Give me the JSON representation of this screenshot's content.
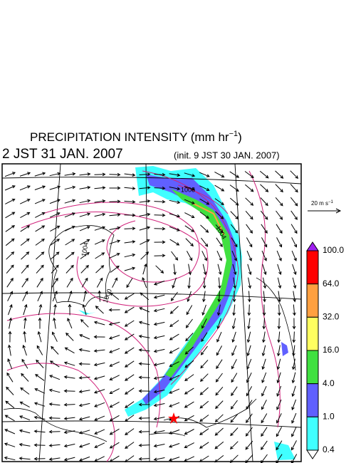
{
  "header": {
    "title": "PRECIPITATION INTENSITY (mm hr",
    "title_sup": "−1",
    "title_end": ")",
    "time": "2 JST 31 JAN. 2007",
    "init": "(init. 9 JST 30 JAN. 2007)"
  },
  "vector_key": {
    "label": "20 m s",
    "sup": "−1"
  },
  "contour_labels": [
    "1008",
    "1004",
    "1004",
    "1000"
  ],
  "colorbar": {
    "labels": [
      "100.0",
      "64.0",
      "32.0",
      "16.0",
      "4.0",
      "1.0",
      "0.4"
    ],
    "colors": [
      "#a020f0",
      "#ff0000",
      "#ffa040",
      "#ffff60",
      "#40e040",
      "#6060ff",
      "#40ffff",
      "#ffffff"
    ]
  }
}
